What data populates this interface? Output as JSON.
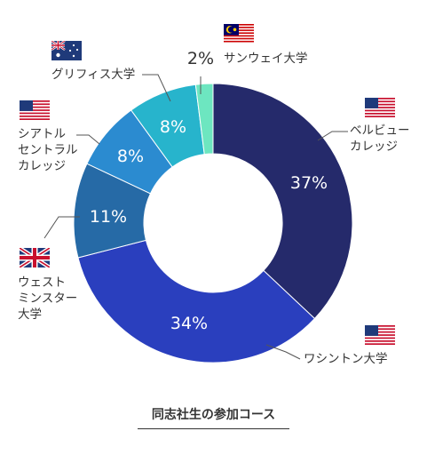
{
  "chart_data": {
    "type": "donut",
    "title": "同志社生の参加コース",
    "series": [
      {
        "name": "ベルビュー\nカレッジ",
        "value": 37,
        "label": "37%",
        "color": "#252a6b",
        "flag": "us"
      },
      {
        "name": "ワシントン大学",
        "value": 34,
        "label": "34%",
        "color": "#2a3fbe",
        "flag": "us"
      },
      {
        "name": "ウェスト\nミンスター\n大学",
        "value": 11,
        "label": "11%",
        "color": "#266aa6",
        "flag": "uk"
      },
      {
        "name": "シアトル\nセントラル\nカレッジ",
        "value": 8,
        "label": "8%",
        "color": "#2b8bd0",
        "flag": "us"
      },
      {
        "name": "グリフィス大学",
        "value": 8,
        "label": "8%",
        "color": "#27b4cc",
        "flag": "au"
      },
      {
        "name": "サンウェイ大学",
        "value": 2,
        "label": "2%",
        "color": "#6de6c0",
        "flag": "my"
      }
    ]
  }
}
